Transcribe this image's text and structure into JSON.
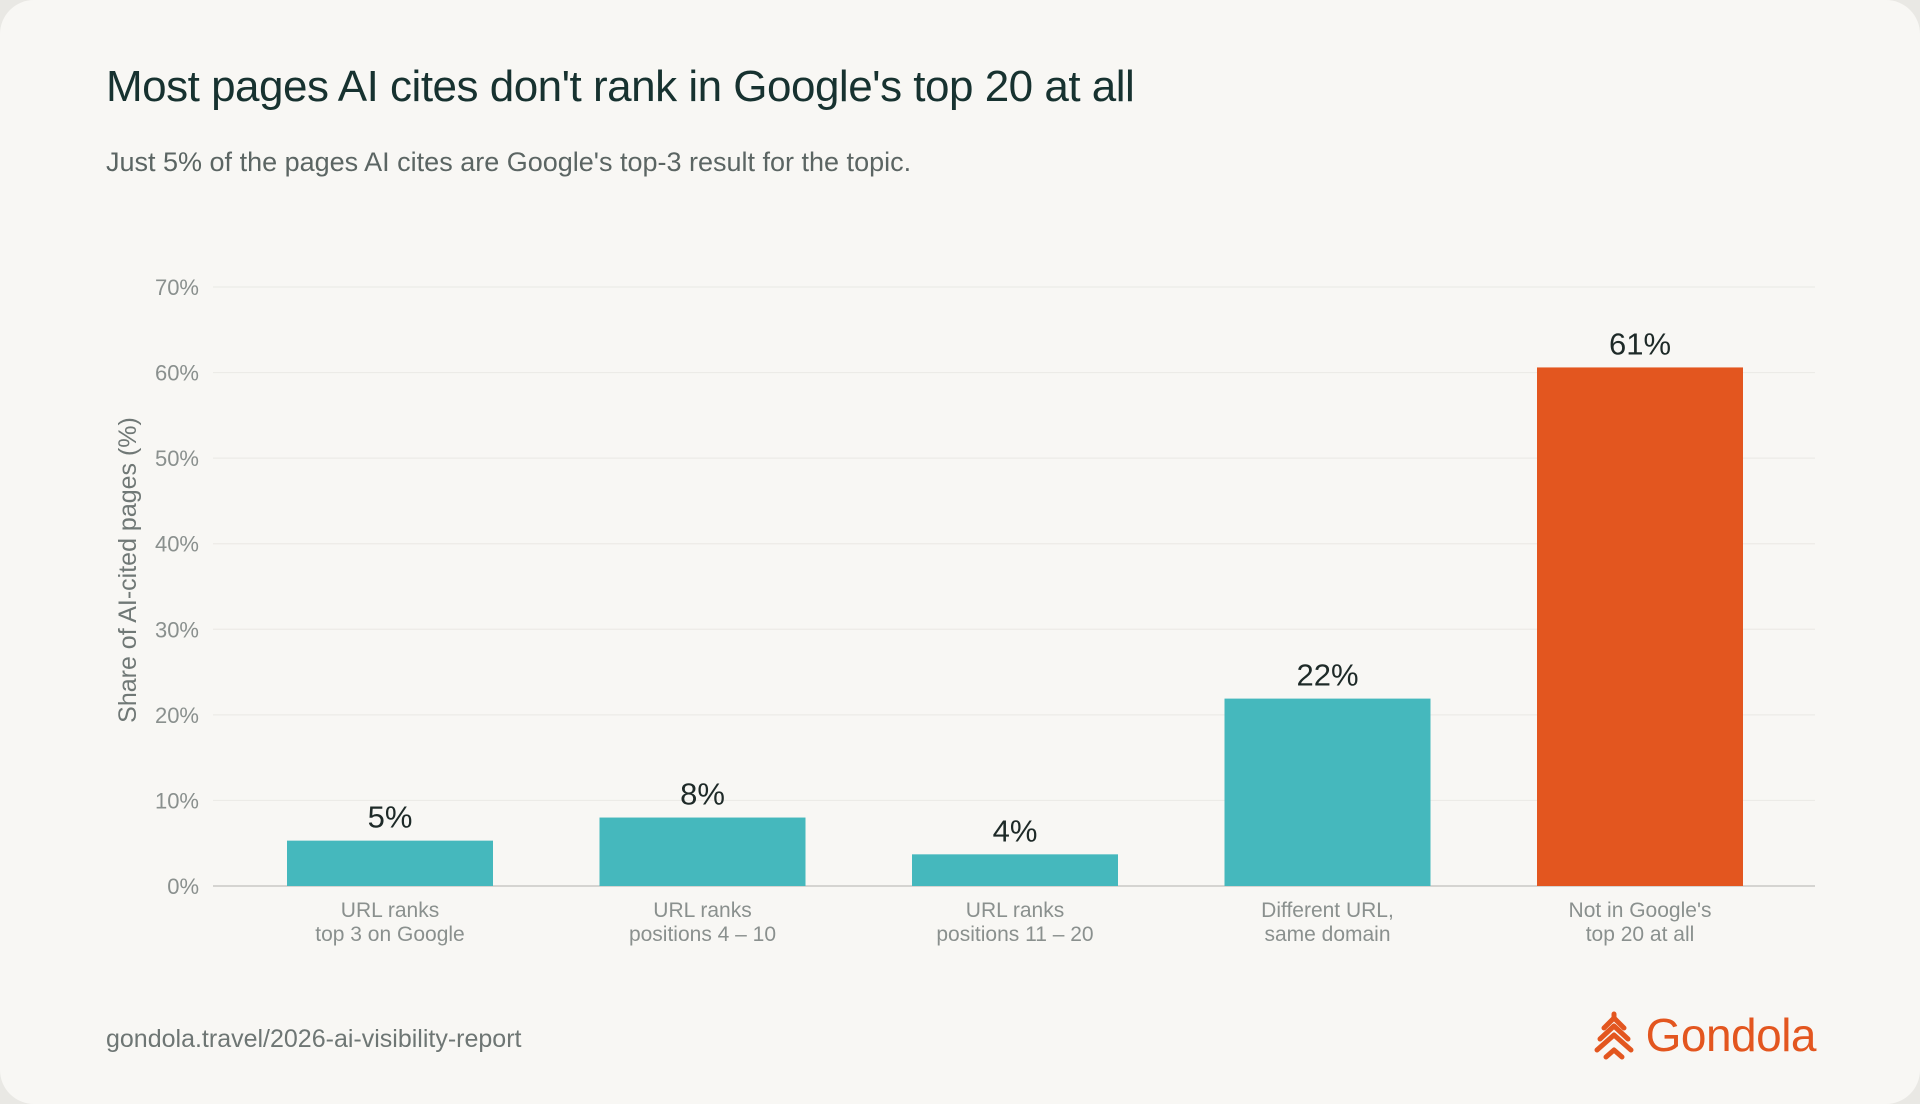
{
  "title": "Most pages AI cites don't rank in Google's top 20 at all",
  "subtitle": "Just 5% of the pages AI cites are Google's top-3 result for the topic.",
  "footer": {
    "url": "gondola.travel/2026-ai-visibility-report",
    "brand_name": "Gondola",
    "logo_icon": "gondola-chevron-logo-icon"
  },
  "colors": {
    "bar_default": "#45b8bd",
    "bar_highlight": "#e3561f",
    "axis_text": "#8a908e",
    "value_text": "#1e2a28",
    "grid": "#ecebe7",
    "baseline": "#c9c9c5"
  },
  "chart_data": {
    "type": "bar",
    "title": "Most pages AI cites don't rank in Google's top 20 at all",
    "subtitle": "Just 5% of the pages AI cites are Google's top-3 result for the topic.",
    "ylabel": "Share of AI-cited pages (%)",
    "xlabel": "",
    "ylim": [
      0,
      70
    ],
    "yticks": [
      0,
      10,
      20,
      30,
      40,
      50,
      60,
      70
    ],
    "ytick_labels": [
      "0%",
      "10%",
      "20%",
      "30%",
      "40%",
      "50%",
      "60%",
      "70%"
    ],
    "grid": true,
    "categories": [
      [
        "URL ranks",
        "top 3 on Google"
      ],
      [
        "URL ranks",
        "positions 4 – 10"
      ],
      [
        "URL ranks",
        "positions 11 – 20"
      ],
      [
        "Different URL,",
        "same domain"
      ],
      [
        "Not in Google's",
        "top 20 at all"
      ]
    ],
    "values": [
      5.3,
      8,
      3.7,
      21.9,
      60.6
    ],
    "value_labels": [
      "5%",
      "8%",
      "4%",
      "22%",
      "61%"
    ],
    "highlight_index": 4
  }
}
